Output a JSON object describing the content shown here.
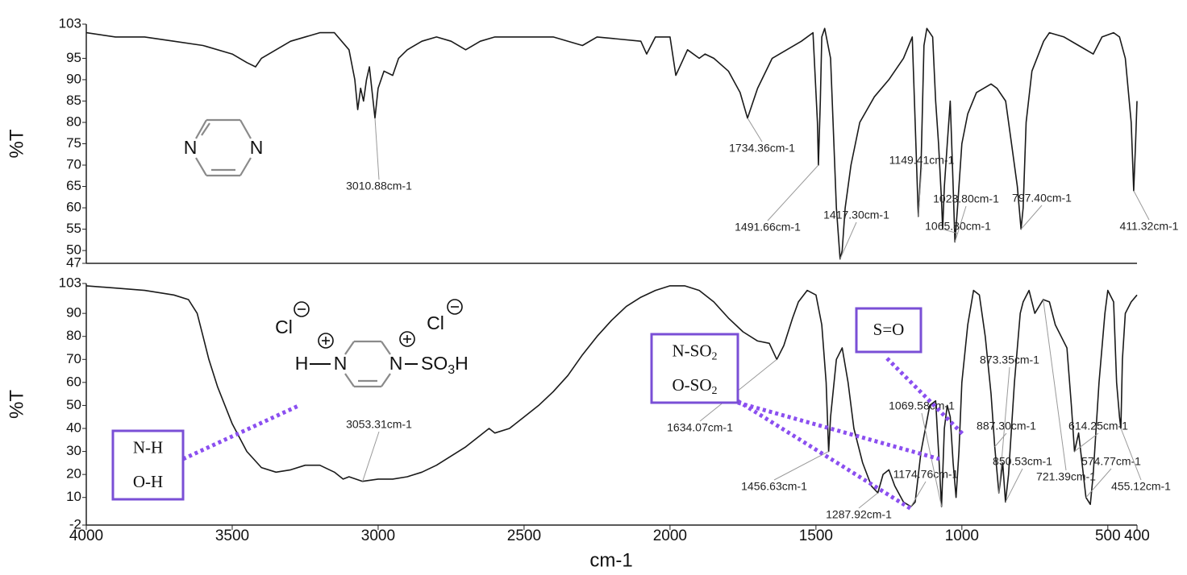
{
  "chart_data": [
    {
      "type": "line",
      "ylabel": "%T",
      "xlim": [
        4000,
        400
      ],
      "ylim": [
        47,
        103
      ],
      "yticks": [
        103,
        95,
        90,
        85,
        80,
        75,
        70,
        65,
        60,
        55,
        50,
        47
      ],
      "x": [
        4000,
        3900,
        3800,
        3700,
        3600,
        3500,
        3450,
        3420,
        3400,
        3300,
        3200,
        3150,
        3100,
        3080,
        3070,
        3060,
        3050,
        3040,
        3030,
        3010.88,
        3000,
        2980,
        2950,
        2930,
        2900,
        2850,
        2800,
        2750,
        2700,
        2650,
        2600,
        2500,
        2400,
        2300,
        2250,
        2100,
        2080,
        2050,
        2000,
        1980,
        1960,
        1940,
        1900,
        1880,
        1850,
        1800,
        1760,
        1734.36,
        1700,
        1650,
        1600,
        1550,
        1510,
        1495,
        1491.66,
        1485,
        1480,
        1470,
        1450,
        1430,
        1417.3,
        1410,
        1400,
        1380,
        1350,
        1300,
        1250,
        1200,
        1170,
        1160,
        1149.41,
        1140,
        1130,
        1120,
        1100,
        1090,
        1080,
        1070,
        1065.8,
        1060,
        1050,
        1040,
        1030,
        1023.8,
        1015,
        1000,
        980,
        950,
        900,
        880,
        850,
        830,
        810,
        797.4,
        790,
        780,
        760,
        720,
        700,
        650,
        600,
        550,
        520,
        480,
        460,
        440,
        420,
        411.32,
        405,
        400
      ],
      "series": [
        {
          "color": "#1a1a1a",
          "values": [
            101,
            100,
            100,
            99,
            98,
            96,
            94,
            93,
            95,
            99,
            101,
            101,
            97,
            90,
            83,
            88,
            85,
            90,
            93,
            81,
            88,
            92,
            91,
            95,
            97,
            99,
            100,
            99,
            97,
            99,
            100,
            100,
            100,
            98,
            100,
            99,
            96,
            100,
            100,
            91,
            94,
            97,
            95,
            96,
            95,
            92,
            87,
            81,
            88,
            95,
            97,
            99,
            101,
            80,
            70,
            85,
            100,
            102,
            95,
            60,
            48,
            50,
            60,
            70,
            80,
            86,
            90,
            95,
            100,
            80,
            58,
            70,
            98,
            102,
            100,
            85,
            75,
            62,
            55,
            65,
            75,
            85,
            65,
            52,
            60,
            75,
            82,
            87,
            89,
            88,
            85,
            75,
            65,
            55,
            60,
            80,
            92,
            99,
            101,
            100,
            98,
            96,
            100,
            101,
            100,
            95,
            80,
            64,
            75,
            85
          ]
        }
      ],
      "annotations": [
        {
          "label": "3010.88cm-1",
          "x": 3010.88,
          "y": 81
        },
        {
          "label": "1734.36cm-1",
          "x": 1734.36,
          "y": 81
        },
        {
          "label": "1491.66cm-1",
          "x": 1491.66,
          "y": 70
        },
        {
          "label": "1417.30cm-1",
          "x": 1417.3,
          "y": 48
        },
        {
          "label": "1149.41cm-1",
          "x": 1149.41,
          "y": 58
        },
        {
          "label": "1065.80cm-1",
          "x": 1065.8,
          "y": 55
        },
        {
          "label": "1023.80cm-1",
          "x": 1023.8,
          "y": 52
        },
        {
          "label": "797.40cm-1",
          "x": 797.4,
          "y": 55
        },
        {
          "label": "411.32cm-1",
          "x": 411.32,
          "y": 64
        }
      ],
      "molecule": {
        "labels": [
          "N",
          "N"
        ]
      }
    },
    {
      "type": "line",
      "ylabel": "%T",
      "xlabel": "cm-1",
      "xlim": [
        4000,
        400
      ],
      "ylim": [
        -2,
        103
      ],
      "xticks": [
        4000,
        3500,
        3000,
        2500,
        2000,
        1500,
        1000,
        500,
        400
      ],
      "yticks": [
        103,
        90,
        80,
        70,
        60,
        50,
        40,
        30,
        20,
        10,
        -2
      ],
      "x": [
        4000,
        3900,
        3800,
        3750,
        3700,
        3650,
        3620,
        3600,
        3580,
        3550,
        3500,
        3450,
        3400,
        3350,
        3300,
        3250,
        3200,
        3150,
        3120,
        3100,
        3053.31,
        3000,
        2950,
        2900,
        2850,
        2800,
        2750,
        2700,
        2650,
        2620,
        2600,
        2550,
        2500,
        2450,
        2400,
        2350,
        2300,
        2250,
        2200,
        2150,
        2100,
        2050,
        2000,
        1950,
        1900,
        1850,
        1800,
        1750,
        1700,
        1660,
        1634.07,
        1610,
        1580,
        1560,
        1530,
        1500,
        1480,
        1465,
        1456.63,
        1450,
        1430,
        1410,
        1390,
        1370,
        1340,
        1310,
        1287.92,
        1270,
        1250,
        1230,
        1200,
        1174.76,
        1160,
        1140,
        1110,
        1090,
        1080,
        1069.58,
        1060,
        1050,
        1040,
        1030,
        1020,
        1010,
        1000,
        980,
        960,
        940,
        920,
        900,
        887.3,
        873.35,
        860,
        850.53,
        840,
        820,
        800,
        790,
        770,
        750,
        721.39,
        700,
        680,
        660,
        640,
        625,
        614.25,
        600,
        574.77,
        560,
        550,
        530,
        510,
        500,
        480,
        470,
        460,
        455.12,
        450,
        440,
        420,
        400
      ],
      "series": [
        {
          "color": "#1a1a1a",
          "values": [
            102,
            101,
            100,
            99,
            98,
            96,
            90,
            80,
            70,
            58,
            42,
            30,
            23,
            21,
            22,
            24,
            24,
            21,
            18,
            19,
            17,
            18,
            18,
            19,
            21,
            24,
            28,
            32,
            37,
            40,
            38,
            40,
            45,
            50,
            56,
            63,
            72,
            80,
            87,
            93,
            97,
            100,
            102,
            102,
            100,
            95,
            88,
            82,
            78,
            77,
            70,
            76,
            88,
            95,
            100,
            98,
            85,
            60,
            30,
            45,
            70,
            75,
            60,
            40,
            25,
            15,
            12,
            20,
            22,
            15,
            8,
            6,
            8,
            30,
            50,
            52,
            30,
            6,
            40,
            50,
            45,
            25,
            10,
            30,
            60,
            85,
            100,
            98,
            80,
            55,
            32,
            12,
            25,
            8,
            20,
            60,
            90,
            95,
            100,
            90,
            96,
            95,
            85,
            80,
            75,
            50,
            30,
            38,
            10,
            7,
            20,
            60,
            90,
            100,
            95,
            60,
            45,
            40,
            70,
            90,
            95,
            98
          ]
        }
      ],
      "annotations": [
        {
          "label": "3053.31cm-1",
          "x": 3053.31,
          "y": 17
        },
        {
          "label": "1634.07cm-1",
          "x": 1634.07,
          "y": 70
        },
        {
          "label": "1456.63cm-1",
          "x": 1456.63,
          "y": 30
        },
        {
          "label": "1287.92cm-1",
          "x": 1287.92,
          "y": 12
        },
        {
          "label": "1174.76cm-1",
          "x": 1174.76,
          "y": 6
        },
        {
          "label": "1069.58cm-1",
          "x": 1069.58,
          "y": 6
        },
        {
          "label": "887.30cm-1",
          "x": 887.3,
          "y": 32
        },
        {
          "label": "873.35cm-1",
          "x": 873.35,
          "y": 12
        },
        {
          "label": "850.53cm-1",
          "x": 850.53,
          "y": 8
        },
        {
          "label": "721.39cm-1",
          "x": 721.39,
          "y": 96
        },
        {
          "label": "614.25cm-1",
          "x": 614.25,
          "y": 30
        },
        {
          "label": "574.77cm-1",
          "x": 574.77,
          "y": 10
        },
        {
          "label": "455.12cm-1",
          "x": 455.12,
          "y": 40
        }
      ],
      "molecule": {
        "labels": [
          "Cl",
          "Cl",
          "H",
          "N",
          "N",
          "SO",
          "3",
          "H"
        ]
      },
      "boxes": [
        {
          "lines": [
            [
              "N-H"
            ],
            [
              "O-H"
            ]
          ]
        },
        {
          "lines": [
            [
              "N-SO",
              "2"
            ],
            [
              "O-SO",
              "2"
            ]
          ]
        },
        {
          "lines": [
            [
              "S=O"
            ]
          ]
        }
      ]
    }
  ]
}
